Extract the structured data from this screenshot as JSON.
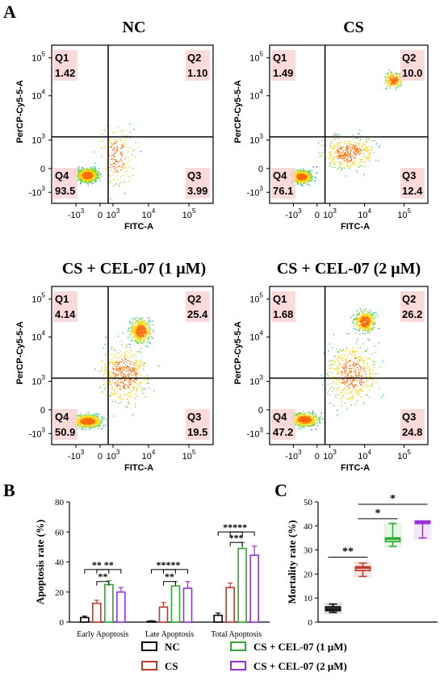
{
  "panel_labels": {
    "a": "A",
    "b": "B",
    "c": "C"
  },
  "flow_plots": [
    {
      "title": "NC",
      "q1": "1.42",
      "q2": "1.10",
      "q3": "3.99",
      "q4": "93.5",
      "pattern": "nc"
    },
    {
      "title": "CS",
      "q1": "1.49",
      "q2": "10.0",
      "q3": "12.4",
      "q4": "76.1",
      "pattern": "cs"
    },
    {
      "title": "CS + CEL-07 (1 μM)",
      "q1": "4.14",
      "q2": "25.4",
      "q3": "19.5",
      "q4": "50.9",
      "pattern": "cel1"
    },
    {
      "title": "CS + CEL-07  (2 μM)",
      "q1": "1.68",
      "q2": "26.2",
      "q3": "24.8",
      "q4": "47.2",
      "pattern": "cel2"
    }
  ],
  "flow_axes": {
    "xlabel": "FITC-A",
    "ylabel": "PerCP-Cy5-5-A",
    "quadrant_names": [
      "Q1",
      "Q2",
      "Q3",
      "Q4"
    ],
    "xticks": [
      {
        "base": "-10",
        "exp": "3"
      },
      {
        "base": "0",
        "exp": ""
      },
      {
        "base": "10",
        "exp": "3"
      },
      {
        "base": "10",
        "exp": "4"
      },
      {
        "base": "10",
        "exp": "5"
      }
    ],
    "yticks": [
      {
        "base": "10",
        "exp": "5"
      },
      {
        "base": "10",
        "exp": "4"
      },
      {
        "base": "10",
        "exp": "3"
      },
      {
        "base": "0",
        "exp": ""
      },
      {
        "base": "-10",
        "exp": "3"
      }
    ]
  },
  "chart_data": [
    {
      "type": "bar",
      "ylabel": "Apoptosis rate (%)",
      "ylim": [
        0,
        80
      ],
      "yticks": [
        "0",
        "20",
        "40",
        "60",
        "80"
      ],
      "categories": [
        "Early Apoptosis",
        "Late Apoptosis",
        "Total Apoptosis"
      ],
      "series": [
        {
          "name": "NC",
          "color": "#000000",
          "values": [
            3.0,
            0.5,
            4.5
          ],
          "errors": [
            1.0,
            0.4,
            1.5
          ]
        },
        {
          "name": "CS",
          "color": "#c0392b",
          "values": [
            12.5,
            10.0,
            23.0
          ],
          "errors": [
            2.0,
            3.0,
            3.0
          ]
        },
        {
          "name": "CS + CEL-07 (1 μM)",
          "color": "#2eaa2e",
          "values": [
            25.0,
            24.0,
            49.0
          ],
          "errors": [
            2.5,
            3.0,
            4.0
          ]
        },
        {
          "name": "CS + CEL-07 (2 μM)",
          "color": "#9b30d9",
          "values": [
            20.0,
            22.5,
            44.5
          ],
          "errors": [
            3.0,
            4.5,
            6.0
          ]
        }
      ],
      "significance": [
        {
          "group": 0,
          "from": 0,
          "to": 2,
          "label": "**",
          "y": 35
        },
        {
          "group": 0,
          "from": 1,
          "to": 3,
          "label": "**",
          "y": 35
        },
        {
          "group": 0,
          "from": 1,
          "to": 2,
          "label": "**",
          "y": 27
        },
        {
          "group": 1,
          "from": 0,
          "to": 2,
          "label": "***",
          "y": 35
        },
        {
          "group": 1,
          "from": 1,
          "to": 3,
          "label": "**",
          "y": 35
        },
        {
          "group": 1,
          "from": 1,
          "to": 2,
          "label": "**",
          "y": 27
        },
        {
          "group": 2,
          "from": 0,
          "to": 2,
          "label": "***",
          "y": 60
        },
        {
          "group": 2,
          "from": 1,
          "to": 3,
          "label": "**",
          "y": 60
        },
        {
          "group": 2,
          "from": 1,
          "to": 2,
          "label": "***",
          "y": 53
        }
      ]
    },
    {
      "type": "box",
      "ylabel": "Mortality rate (%)",
      "ylim": [
        0,
        50
      ],
      "yticks": [
        "0",
        "10",
        "20",
        "30",
        "40",
        "50"
      ],
      "groups": [
        {
          "name": "NC",
          "color": "#000000",
          "median": 5.5,
          "q1": 4.8,
          "q3": 6.3,
          "min": 4.0,
          "max": 7.5
        },
        {
          "name": "CS",
          "color": "#c0392b",
          "median": 22.5,
          "q1": 21.5,
          "q3": 23.0,
          "min": 19.0,
          "max": 24.5
        },
        {
          "name": "CS + CEL-07 (1 μM)",
          "color": "#2eaa2e",
          "median": 34.5,
          "q1": 33.5,
          "q3": 35.0,
          "min": 31.5,
          "max": 41.0
        },
        {
          "name": "CS + CEL-07 (2 μM)",
          "color": "#9b30d9",
          "median": 41.5,
          "q1": 41.0,
          "q3": 42.0,
          "min": 35.0,
          "max": 42.0
        }
      ],
      "significance": [
        {
          "from": 0,
          "to": 1,
          "label": "**",
          "y": 27
        },
        {
          "from": 1,
          "to": 2,
          "label": "*",
          "y": 43
        },
        {
          "from": 1,
          "to": 3,
          "label": "*",
          "y": 49
        }
      ]
    }
  ]
}
